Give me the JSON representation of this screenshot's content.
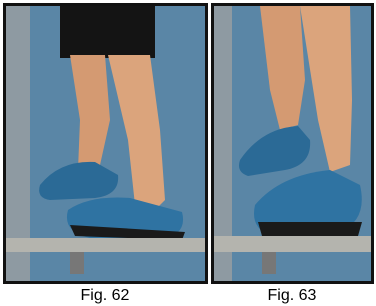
{
  "figures": [
    {
      "caption": "Fig. 62"
    },
    {
      "caption": "Fig. 63"
    }
  ]
}
